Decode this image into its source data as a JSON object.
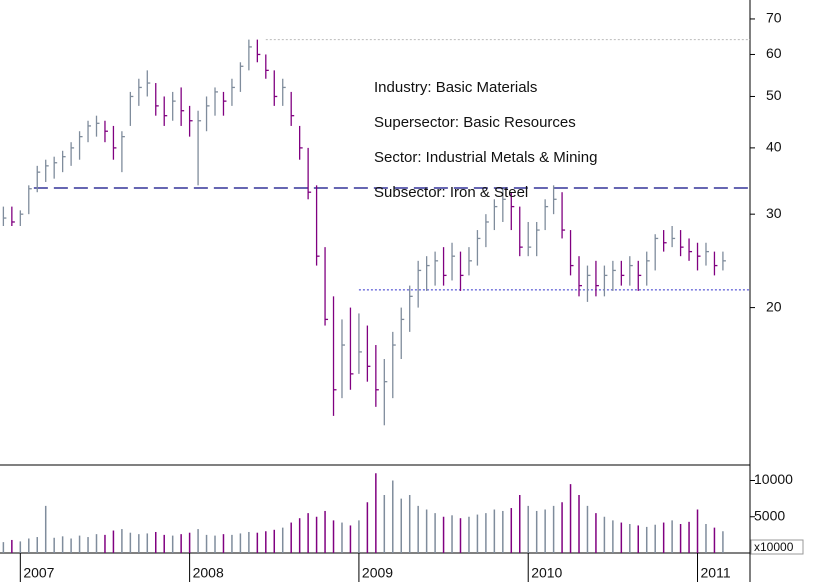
{
  "chart_data": {
    "type": "ohlc",
    "ylog": true,
    "annotations": [
      "Industry: Basic Materials",
      "Supersector: Basic Resources",
      "Sector: Industrial Metals & Mining",
      "Subsector: Iron & Steel"
    ],
    "xlim": [
      2006.88,
      2011.31
    ],
    "xticks": [
      2007,
      2008,
      2009,
      2010,
      2011
    ],
    "ylim": [
      10.1,
      76
    ],
    "yticks": [
      20,
      30,
      40,
      50,
      60,
      70
    ],
    "volume_ylim": [
      0,
      12000
    ],
    "volume_yticks": [
      5000,
      10000
    ],
    "volume_unit": "x10000",
    "up_color": "#7f8c9c",
    "down_color": "#800080",
    "reference_lines": [
      {
        "value": 33.6,
        "from": 2007.08,
        "style": "dashed",
        "color": "#333399"
      },
      {
        "value": 21.6,
        "from": 2009.0,
        "style": "dotted",
        "color": "#3333cc"
      },
      {
        "value": 64,
        "from": 2008.45,
        "style": "dotted",
        "color": "#bbbbbb"
      }
    ],
    "x": [
      2006.9,
      2006.95,
      2007.0,
      2007.05,
      2007.1,
      2007.15,
      2007.2,
      2007.25,
      2007.3,
      2007.35,
      2007.4,
      2007.45,
      2007.5,
      2007.55,
      2007.6,
      2007.65,
      2007.7,
      2007.75,
      2007.8,
      2007.85,
      2007.9,
      2007.95,
      2008.0,
      2008.05,
      2008.1,
      2008.15,
      2008.2,
      2008.25,
      2008.3,
      2008.35,
      2008.4,
      2008.45,
      2008.5,
      2008.55,
      2008.6,
      2008.65,
      2008.7,
      2008.75,
      2008.8,
      2008.85,
      2008.9,
      2008.95,
      2009.0,
      2009.05,
      2009.1,
      2009.15,
      2009.2,
      2009.25,
      2009.3,
      2009.35,
      2009.4,
      2009.45,
      2009.5,
      2009.55,
      2009.6,
      2009.65,
      2009.7,
      2009.75,
      2009.8,
      2009.85,
      2009.9,
      2009.95,
      2010.0,
      2010.05,
      2010.1,
      2010.15,
      2010.2,
      2010.25,
      2010.3,
      2010.35,
      2010.4,
      2010.45,
      2010.5,
      2010.55,
      2010.6,
      2010.65,
      2010.7,
      2010.75,
      2010.8,
      2010.85,
      2010.9,
      2010.95,
      2011.0,
      2011.05,
      2011.1,
      2011.15
    ],
    "low": [
      28.5,
      28.5,
      28.5,
      30,
      33,
      34.5,
      35,
      36,
      37,
      38,
      41,
      42,
      41,
      38,
      36,
      44,
      48,
      50,
      46,
      44,
      45,
      44,
      42,
      34,
      43,
      46,
      46,
      48,
      51,
      56,
      58,
      54,
      48,
      48,
      44,
      38,
      32,
      24,
      18.5,
      12.5,
      13.5,
      14,
      15,
      14.5,
      13,
      12,
      13.5,
      16,
      18,
      20,
      21.5,
      22,
      22,
      22.5,
      21.5,
      23,
      24,
      26,
      28,
      29,
      28,
      25,
      25,
      25,
      28,
      30,
      27,
      23,
      21,
      20.5,
      21,
      21,
      21.5,
      22,
      22,
      21.5,
      22,
      23.5,
      25.5,
      26,
      25,
      24.5,
      23.5,
      24,
      23,
      23.5
    ],
    "high": [
      31,
      31,
      30.5,
      34,
      37,
      38,
      38.5,
      39.5,
      41,
      43,
      45,
      46,
      45,
      44,
      43,
      51,
      54,
      56,
      53,
      50,
      51,
      52,
      48,
      47,
      50,
      52,
      51,
      54,
      58,
      64,
      64,
      60,
      56,
      54,
      51,
      44,
      40,
      34,
      26,
      21,
      19,
      20,
      19.5,
      18.5,
      17,
      16,
      18,
      20,
      22,
      24.5,
      25,
      25.5,
      26,
      26.5,
      25.5,
      26,
      28,
      30,
      32,
      33.5,
      33,
      31,
      29,
      29,
      32,
      34,
      33,
      28,
      25,
      24,
      24.5,
      24,
      24.5,
      24.5,
      25,
      24.5,
      25.5,
      27.5,
      28,
      28.5,
      28,
      27,
      26.5,
      26.5,
      25.5,
      25.5
    ],
    "close": [
      29.5,
      29,
      30,
      33.5,
      36,
      37,
      37.5,
      38.5,
      40,
      42,
      44,
      44.5,
      43,
      40,
      42,
      50,
      52,
      53,
      48,
      46,
      49,
      47,
      45,
      45,
      48,
      51,
      49,
      52,
      57,
      62,
      60,
      56,
      50,
      52,
      46,
      40,
      33,
      25,
      19,
      14,
      17,
      15,
      16.5,
      15.5,
      14,
      14.5,
      17,
      19,
      21,
      23.5,
      24,
      24.5,
      23,
      25,
      23,
      24.5,
      27,
      29,
      31,
      32,
      31,
      26,
      26,
      28,
      31,
      32,
      28,
      24,
      22,
      23,
      22,
      23,
      23.5,
      23,
      24,
      23,
      24.5,
      27,
      26.5,
      27,
      26,
      25.5,
      25,
      25.5,
      24,
      24.5
    ],
    "volume": [
      1500,
      1800,
      1600,
      2000,
      2200,
      6500,
      2100,
      2300,
      2000,
      2400,
      2200,
      2600,
      2500,
      3100,
      3300,
      2800,
      2600,
      2700,
      2900,
      2500,
      2400,
      2600,
      2800,
      3300,
      2500,
      2400,
      2600,
      2500,
      2700,
      2900,
      2800,
      3000,
      3200,
      3500,
      4200,
      4800,
      5500,
      5000,
      5800,
      4500,
      4200,
      3800,
      4500,
      7000,
      11000,
      8000,
      10000,
      7500,
      8000,
      6500,
      6000,
      5500,
      5000,
      5200,
      4800,
      5000,
      5300,
      5500,
      6000,
      5800,
      6200,
      8000,
      6500,
      5800,
      6000,
      6500,
      7000,
      9500,
      8000,
      6500,
      5500,
      5000,
      4500,
      4200,
      4000,
      3800,
      3600,
      3900,
      4200,
      4500,
      4000,
      4300,
      6000,
      4000,
      3500,
      3000
    ]
  }
}
